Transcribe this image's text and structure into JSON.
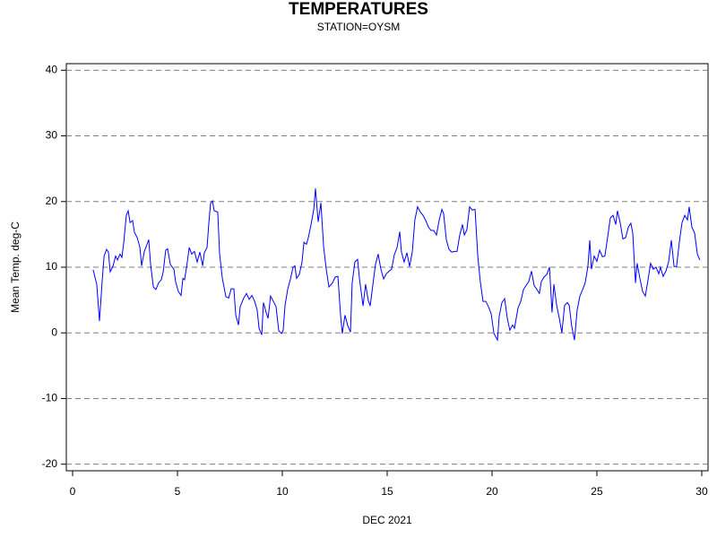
{
  "chart_data": {
    "type": "line",
    "title": "TEMPERATURES",
    "subtitle": "STATION=OYSM",
    "x_label": "DEC 2021",
    "y_label": "Mean Temp. deg-C",
    "color": "#0000ff",
    "grid": true,
    "xlim": [
      -0.3,
      30.3
    ],
    "xticks": [
      0,
      5,
      10,
      15,
      20,
      25,
      30
    ],
    "ylim": [
      -21,
      41
    ],
    "yticks": [
      -20,
      -10,
      0,
      10,
      20,
      30,
      40
    ],
    "x": [
      0.98,
      1.15,
      1.28,
      1.41,
      1.5,
      1.62,
      1.71,
      1.79,
      1.92,
      2.05,
      2.14,
      2.26,
      2.35,
      2.44,
      2.56,
      2.65,
      2.74,
      2.86,
      2.95,
      3.08,
      3.21,
      3.29,
      3.42,
      3.55,
      3.63,
      3.72,
      3.85,
      3.97,
      4.1,
      4.23,
      4.32,
      4.44,
      4.53,
      4.66,
      4.83,
      4.91,
      5.04,
      5.17,
      5.26,
      5.34,
      5.47,
      5.56,
      5.68,
      5.81,
      5.94,
      6.07,
      6.2,
      6.28,
      6.41,
      6.5,
      6.58,
      6.67,
      6.75,
      6.92,
      7.01,
      7.14,
      7.31,
      7.44,
      7.56,
      7.69,
      7.78,
      7.91,
      7.99,
      8.16,
      8.29,
      8.42,
      8.55,
      8.68,
      8.8,
      8.89,
      9.02,
      9.1,
      9.23,
      9.32,
      9.44,
      9.57,
      9.7,
      9.83,
      9.96,
      10.04,
      10.13,
      10.26,
      10.38,
      10.51,
      10.6,
      10.68,
      10.81,
      10.94,
      11.03,
      11.15,
      11.24,
      11.37,
      11.5,
      11.58,
      11.71,
      11.84,
      11.97,
      12.09,
      12.22,
      12.39,
      12.52,
      12.65,
      12.78,
      12.86,
      12.99,
      13.12,
      13.25,
      13.33,
      13.46,
      13.59,
      13.68,
      13.85,
      13.97,
      14.1,
      14.19,
      14.32,
      14.44,
      14.57,
      14.7,
      14.83,
      14.96,
      15.09,
      15.21,
      15.34,
      15.47,
      15.6,
      15.68,
      15.81,
      15.94,
      16.07,
      16.2,
      16.32,
      16.45,
      16.58,
      16.71,
      16.84,
      16.97,
      17.09,
      17.22,
      17.35,
      17.48,
      17.61,
      17.69,
      17.82,
      17.95,
      18.08,
      18.21,
      18.33,
      18.46,
      18.59,
      18.68,
      18.8,
      18.93,
      19.06,
      19.19,
      19.32,
      19.44,
      19.57,
      19.7,
      19.83,
      19.96,
      20.09,
      20.26,
      20.34,
      20.47,
      20.6,
      20.73,
      20.85,
      20.98,
      21.07,
      21.24,
      21.37,
      21.5,
      21.62,
      21.75,
      21.88,
      22.01,
      22.14,
      22.26,
      22.35,
      22.48,
      22.61,
      22.74,
      22.86,
      22.95,
      23.08,
      23.21,
      23.33,
      23.46,
      23.59,
      23.68,
      23.8,
      23.93,
      24.06,
      24.19,
      24.32,
      24.44,
      24.57,
      24.66,
      24.74,
      24.87,
      25.0,
      25.13,
      25.26,
      25.38,
      25.51,
      25.64,
      25.77,
      25.9,
      25.98,
      26.11,
      26.24,
      26.37,
      26.5,
      26.62,
      26.71,
      26.84,
      26.92,
      27.05,
      27.18,
      27.31,
      27.44,
      27.56,
      27.69,
      27.82,
      27.95,
      28.03,
      28.16,
      28.29,
      28.42,
      28.55,
      28.68,
      28.8,
      28.93,
      29.06,
      29.19,
      29.32,
      29.4,
      29.53,
      29.66,
      29.79,
      29.91
    ],
    "values": [
      9.6,
      7.4,
      1.8,
      7.9,
      11.7,
      12.7,
      12.3,
      9.3,
      10.1,
      11.7,
      11.1,
      12.0,
      11.5,
      13.8,
      17.9,
      18.6,
      16.8,
      17.1,
      15.3,
      14.5,
      13.0,
      10.2,
      12.4,
      13.5,
      14.2,
      10.4,
      7.0,
      6.6,
      7.6,
      8.1,
      9.3,
      12.6,
      12.8,
      10.4,
      9.7,
      7.8,
      6.3,
      5.7,
      8.3,
      8.1,
      10.8,
      13.0,
      12.0,
      12.4,
      10.8,
      12.3,
      10.2,
      12.2,
      13.0,
      16.9,
      19.7,
      20.1,
      18.6,
      18.4,
      12.0,
      8.3,
      5.5,
      5.3,
      6.7,
      6.7,
      2.7,
      1.2,
      4.0,
      5.3,
      6.0,
      5.1,
      5.7,
      4.8,
      3.5,
      0.7,
      -0.3,
      4.6,
      3.1,
      2.2,
      5.6,
      4.8,
      4.0,
      0.3,
      -0.1,
      0.4,
      4.2,
      6.7,
      8.1,
      10.0,
      10.2,
      8.3,
      8.9,
      10.8,
      13.8,
      13.5,
      14.5,
      16.5,
      18.8,
      22.0,
      16.9,
      19.8,
      13.1,
      9.8,
      7.0,
      7.6,
      8.5,
      8.6,
      2.6,
      -0.1,
      2.7,
      1.1,
      0.1,
      7.6,
      10.8,
      11.2,
      8.2,
      4.1,
      7.4,
      4.9,
      4.1,
      7.4,
      10.4,
      12.0,
      9.7,
      8.2,
      9.0,
      9.4,
      9.7,
      11.9,
      13.0,
      15.4,
      12.3,
      10.8,
      12.2,
      10.1,
      12.4,
      17.2,
      19.2,
      18.4,
      17.9,
      17.1,
      16.1,
      15.6,
      15.6,
      14.9,
      17.2,
      18.8,
      18.2,
      14.2,
      12.7,
      12.3,
      12.4,
      12.4,
      14.9,
      16.5,
      14.9,
      15.7,
      19.2,
      18.7,
      18.8,
      11.7,
      7.8,
      4.8,
      4.8,
      4.0,
      2.9,
      -0.1,
      -1.1,
      2.5,
      4.6,
      5.2,
      2.2,
      0.4,
      1.2,
      0.7,
      3.8,
      4.8,
      6.6,
      7.2,
      7.8,
      9.4,
      7.2,
      6.6,
      6.0,
      7.8,
      8.5,
      8.9,
      10.0,
      3.1,
      7.4,
      4.2,
      2.2,
      0.0,
      4.2,
      4.6,
      4.2,
      1.0,
      -1.1,
      3.5,
      5.6,
      6.6,
      7.6,
      10.1,
      14.1,
      9.7,
      11.7,
      10.9,
      12.6,
      11.6,
      11.7,
      14.5,
      17.5,
      17.9,
      16.5,
      18.6,
      16.8,
      14.3,
      14.5,
      16.1,
      16.7,
      15.2,
      7.6,
      10.6,
      8.3,
      6.3,
      5.6,
      8.1,
      10.6,
      9.7,
      10.0,
      9.0,
      10.0,
      8.6,
      9.4,
      10.8,
      14.1,
      10.1,
      10.1,
      13.8,
      16.8,
      17.9,
      17.2,
      19.2,
      16.1,
      15.2,
      12.0,
      11.1
    ]
  }
}
